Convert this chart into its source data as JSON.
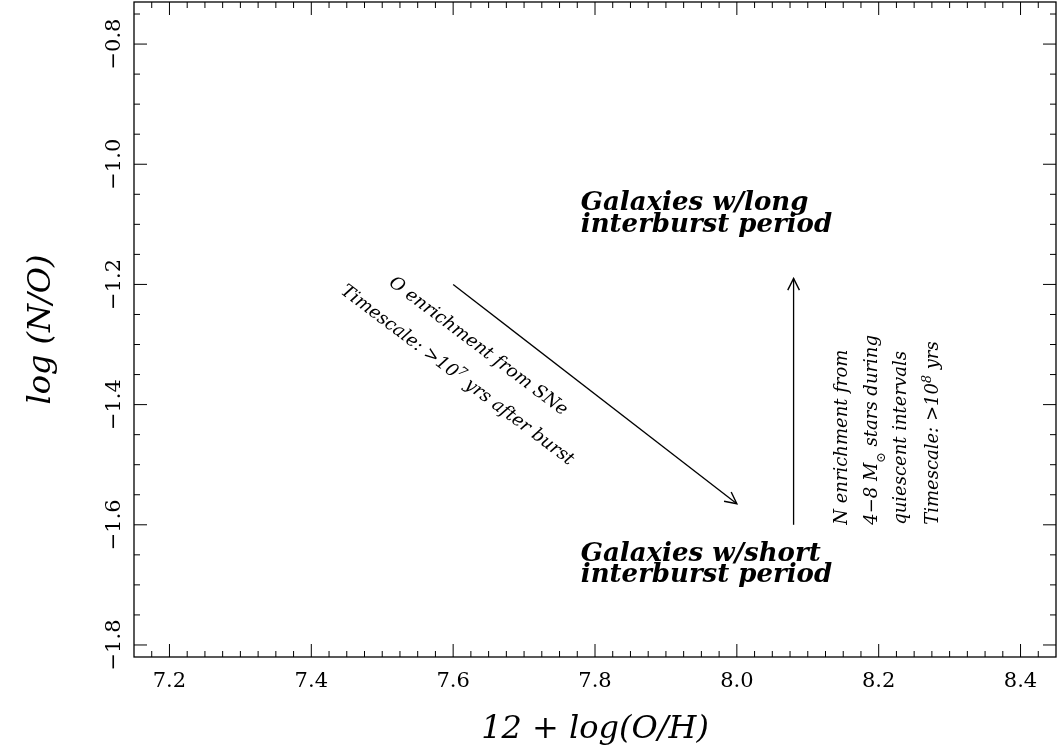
{
  "chart_data": {
    "type": "line",
    "xlabel": "12 + log(O/H)",
    "ylabel": "log (N/O)",
    "xlim": [
      7.15,
      8.45
    ],
    "ylim": [
      -1.82,
      -0.73
    ],
    "xticks": [
      7.2,
      7.4,
      7.6,
      7.8,
      {
        "value": 8.0,
        "label": "8.0"
      },
      8.2,
      8.4,
      {
        "value": 7.175,
        "label": null
      },
      {
        "value": 7.225,
        "label": null
      },
      {
        "value": 7.25,
        "label": null
      },
      {
        "value": 7.275,
        "label": null
      },
      {
        "value": 7.3,
        "label": null
      },
      {
        "value": 7.325,
        "label": null
      },
      {
        "value": 7.35,
        "label": null
      },
      {
        "value": 7.375,
        "label": null
      },
      {
        "value": 7.425,
        "label": null
      },
      {
        "value": 7.45,
        "label": null
      },
      {
        "value": 7.475,
        "label": null
      },
      {
        "value": 7.5,
        "label": null
      },
      {
        "value": 7.525,
        "label": null
      },
      {
        "value": 7.55,
        "label": null
      },
      {
        "value": 7.575,
        "label": null
      },
      {
        "value": 7.625,
        "label": null
      },
      {
        "value": 7.65,
        "label": null
      },
      {
        "value": 7.675,
        "label": null
      },
      {
        "value": 7.7,
        "label": null
      },
      {
        "value": 7.725,
        "label": null
      },
      {
        "value": 7.75,
        "label": null
      },
      {
        "value": 7.775,
        "label": null
      },
      {
        "value": 7.825,
        "label": null
      },
      {
        "value": 7.85,
        "label": null
      },
      {
        "value": 7.875,
        "label": null
      },
      {
        "value": 7.9,
        "label": null
      },
      {
        "value": 7.925,
        "label": null
      },
      {
        "value": 7.95,
        "label": null
      },
      {
        "value": 7.975,
        "label": null
      },
      {
        "value": 8.025,
        "label": null
      },
      {
        "value": 8.05,
        "label": null
      },
      {
        "value": 8.075,
        "label": null
      },
      {
        "value": 8.1,
        "label": null
      },
      {
        "value": 8.125,
        "label": null
      },
      {
        "value": 8.15,
        "label": null
      },
      {
        "value": 8.175,
        "label": null
      },
      {
        "value": 8.225,
        "label": null
      },
      {
        "value": 8.25,
        "label": null
      },
      {
        "value": 8.275,
        "label": null
      },
      {
        "value": 8.3,
        "label": null
      },
      {
        "value": 8.325,
        "label": null
      },
      {
        "value": 8.35,
        "label": null
      },
      {
        "value": 8.375,
        "label": null
      },
      {
        "value": 8.425,
        "label": null
      }
    ],
    "yticks": [
      -0.8,
      {
        "value": -1.0,
        "label": "−1.0"
      },
      -1.2,
      -1.4,
      -1.6,
      -1.8,
      {
        "value": -0.75,
        "label": null
      },
      {
        "value": -0.85,
        "label": null
      },
      {
        "value": -0.9,
        "label": null
      },
      {
        "value": -0.95,
        "label": null
      },
      {
        "value": -1.05,
        "label": null
      },
      {
        "value": -1.1,
        "label": null
      },
      {
        "value": -1.15,
        "label": null
      },
      {
        "value": -1.25,
        "label": null
      },
      {
        "value": -1.3,
        "label": null
      },
      {
        "value": -1.35,
        "label": null
      },
      {
        "value": -1.45,
        "label": null
      },
      {
        "value": -1.5,
        "label": null
      },
      {
        "value": -1.55,
        "label": null
      },
      {
        "value": -1.65,
        "label": null
      },
      {
        "value": -1.7,
        "label": null
      },
      {
        "value": -1.75,
        "label": null
      }
    ],
    "series": [
      {
        "color": "#000000",
        "x": [
          7.6,
          8.0
        ],
        "values": [
          -1.2,
          -1.565
        ]
      },
      {
        "color": "#000000",
        "x": [
          8.08,
          8.08
        ],
        "values": [
          -1.6,
          -1.19
        ]
      }
    ],
    "marker": "none",
    "line_style": "solid",
    "annotations": [
      "Galaxies w/long",
      "interburst period",
      "Galaxies w/short",
      "interburst period",
      "O enrichment from SNe",
      "Timescale: >10$^{7}$ yrs after burst",
      "N enrichment from",
      "4−8 M$_{⊙}$ stars during",
      "quiescent intervals",
      "Timescale: >10$^{8}$ yrs"
    ]
  }
}
